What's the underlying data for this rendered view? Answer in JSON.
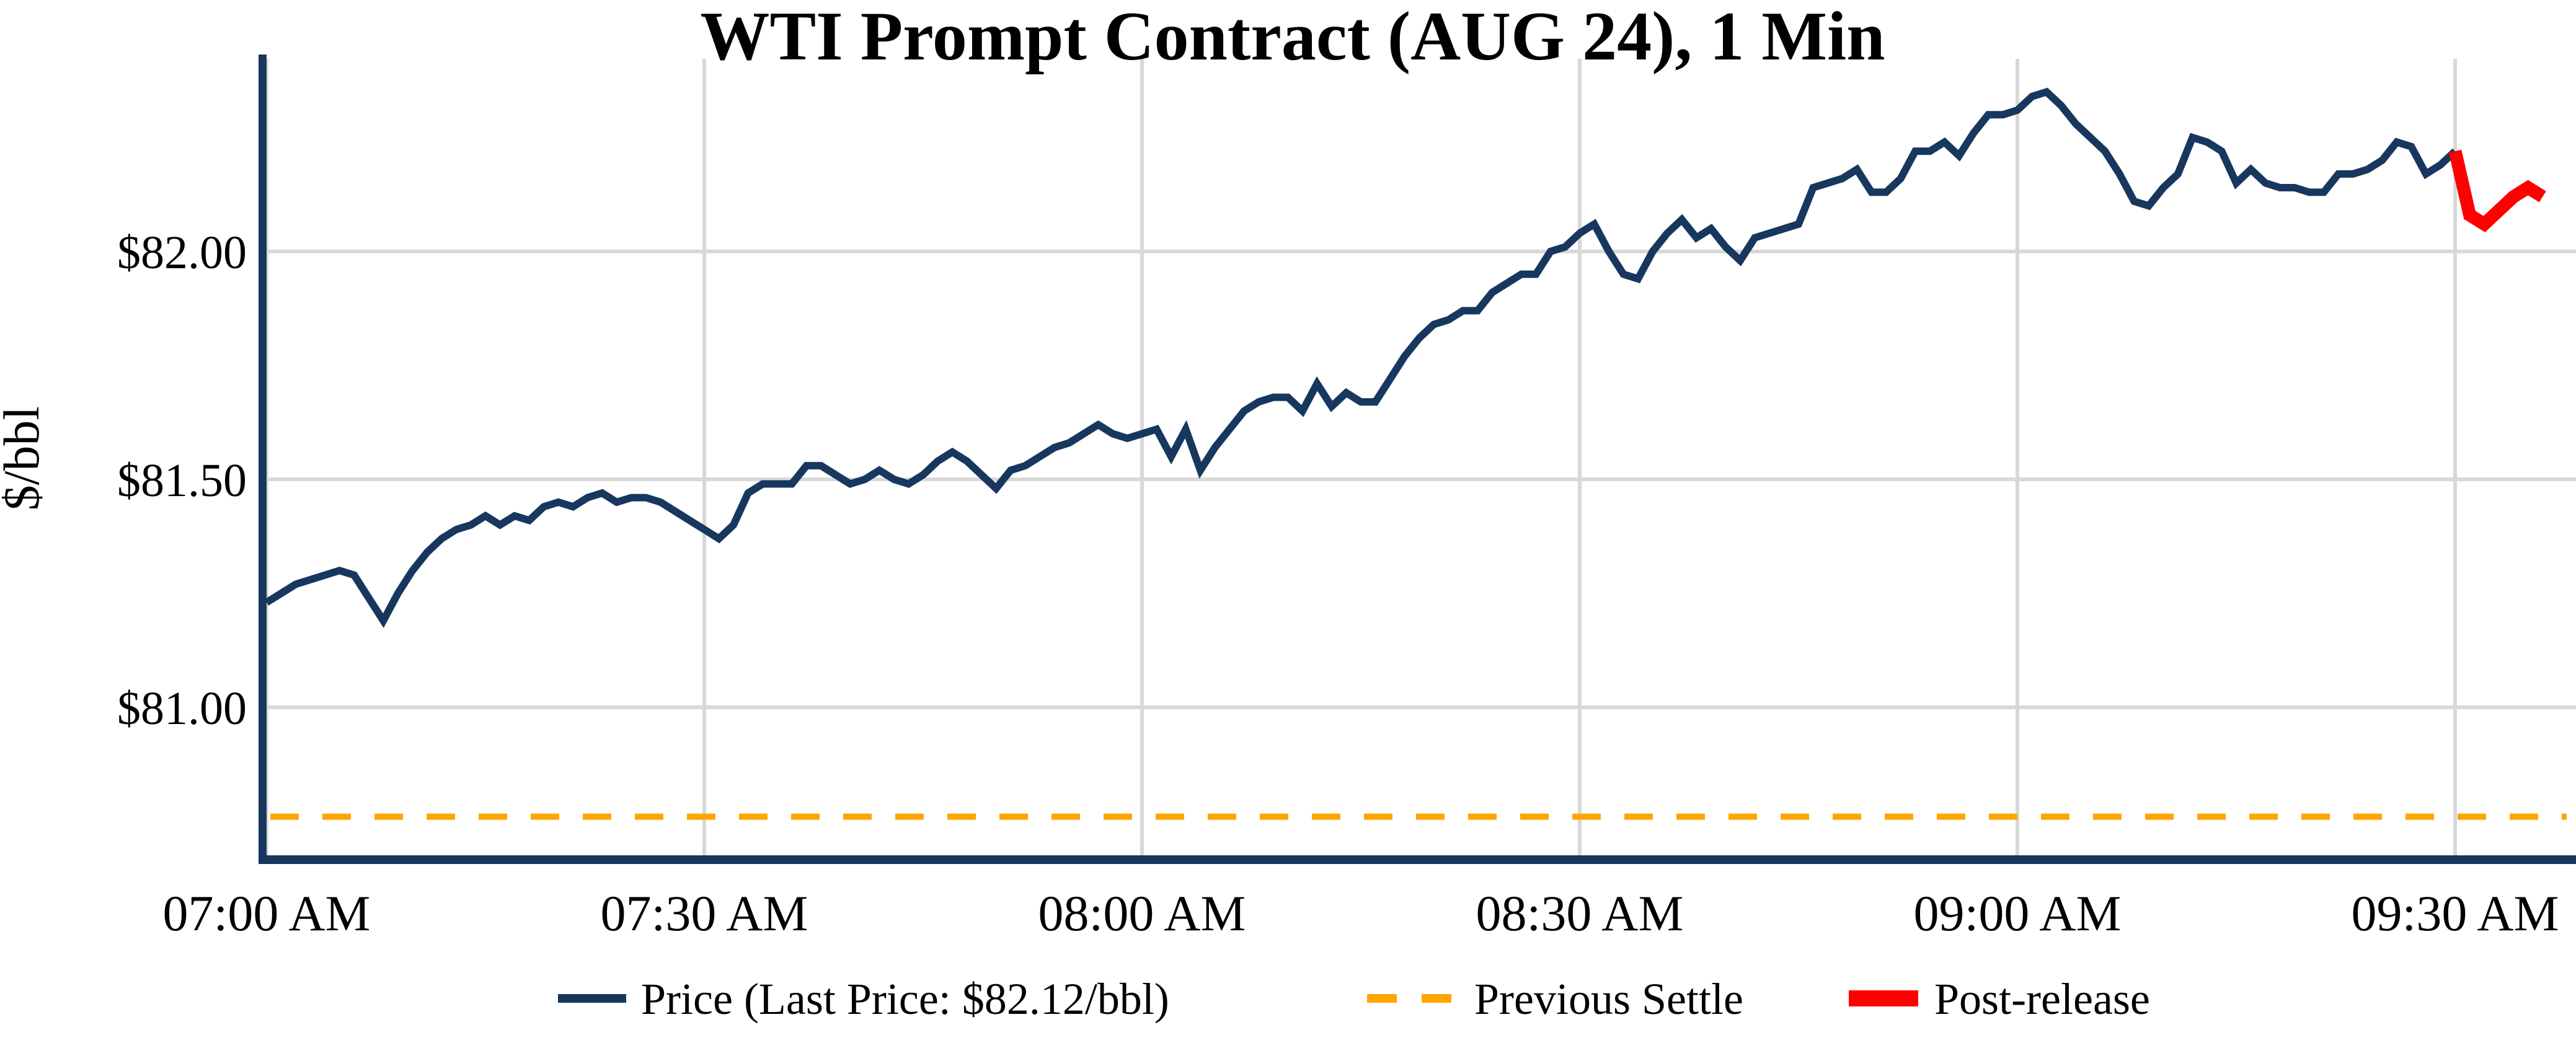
{
  "title": "WTI Prompt Contract (AUG 24), 1 Min",
  "y_axis": {
    "label": "$/bbl",
    "ticks": [
      "$82.00",
      "$81.50",
      "$81.00"
    ],
    "tick_values": [
      82.0,
      81.5,
      81.0
    ]
  },
  "x_axis": {
    "ticks": [
      "07:00 AM",
      "07:30 AM",
      "08:00 AM",
      "08:30 AM",
      "09:00 AM",
      "09:30 AM"
    ]
  },
  "legend": [
    {
      "label": "Price (Last Price: $82.12/bbl)",
      "color": "#17375e",
      "style": "solid"
    },
    {
      "label": "Previous Settle",
      "color": "#ffa500",
      "style": "dashed"
    },
    {
      "label": "Post-release",
      "color": "#fe0000",
      "style": "thick-solid"
    }
  ],
  "colors": {
    "price_line": "#17375e",
    "post_release_line": "#fe0000",
    "previous_settle_line": "#ffa500",
    "gridline": "#d8d8d8",
    "axis_spine": "#17375e",
    "text": "#000000",
    "background": "#ffffff"
  },
  "chart_data": {
    "type": "line",
    "title": "WTI Prompt Contract (AUG 24), 1 Min",
    "xlabel": "",
    "ylabel": "$/bbl",
    "x_start": "07:00 AM",
    "x_end": "09:36 AM",
    "x_step_minutes": 1,
    "x_tick_labels": [
      "07:00 AM",
      "07:30 AM",
      "08:00 AM",
      "08:30 AM",
      "09:00 AM",
      "09:30 AM"
    ],
    "x_tick_minutes": [
      0,
      30,
      60,
      90,
      120,
      150
    ],
    "y_tick_values": [
      82.0,
      81.5,
      81.0
    ],
    "y_tick_labels": [
      "$82.00",
      "$81.50",
      "$81.00"
    ],
    "ylim": [
      80.67,
      82.42
    ],
    "grid": true,
    "legend_position": "bottom-center",
    "last_price": "$82.12/bbl",
    "series": [
      {
        "name": "Price (Last Price: $82.12/bbl)",
        "type": "line",
        "style": "solid",
        "color": "#17375e",
        "start_minute": 0,
        "values": [
          81.23,
          81.25,
          81.27,
          81.28,
          81.29,
          81.3,
          81.29,
          81.24,
          81.19,
          81.25,
          81.3,
          81.34,
          81.37,
          81.39,
          81.4,
          81.42,
          81.4,
          81.42,
          81.41,
          81.44,
          81.45,
          81.44,
          81.46,
          81.47,
          81.45,
          81.46,
          81.46,
          81.45,
          81.43,
          81.41,
          81.39,
          81.37,
          81.4,
          81.47,
          81.49,
          81.49,
          81.49,
          81.53,
          81.53,
          81.51,
          81.49,
          81.5,
          81.52,
          81.5,
          81.49,
          81.51,
          81.54,
          81.56,
          81.54,
          81.51,
          81.48,
          81.52,
          81.53,
          81.55,
          81.57,
          81.58,
          81.6,
          81.62,
          81.6,
          81.59,
          81.6,
          81.61,
          81.55,
          81.61,
          81.52,
          81.57,
          81.61,
          81.65,
          81.67,
          81.68,
          81.68,
          81.65,
          81.71,
          81.66,
          81.69,
          81.67,
          81.67,
          81.72,
          81.77,
          81.81,
          81.84,
          81.85,
          81.87,
          81.87,
          81.91,
          81.93,
          81.95,
          81.95,
          82.0,
          82.01,
          82.04,
          82.06,
          82.0,
          81.95,
          81.94,
          82.0,
          82.04,
          82.07,
          82.03,
          82.05,
          82.01,
          81.98,
          82.03,
          82.04,
          82.05,
          82.06,
          82.14,
          82.15,
          82.16,
          82.18,
          82.13,
          82.13,
          82.16,
          82.22,
          82.22,
          82.24,
          82.21,
          82.26,
          82.3,
          82.3,
          82.31,
          82.34,
          82.35,
          82.32,
          82.28,
          82.25,
          82.22,
          82.17,
          82.11,
          82.1,
          82.14,
          82.17,
          82.25,
          82.24,
          82.22,
          82.15,
          82.18,
          82.15,
          82.14,
          82.14,
          82.13,
          82.13,
          82.17,
          82.17,
          82.18,
          82.2,
          82.24,
          82.23,
          82.17,
          82.19,
          82.22
        ]
      },
      {
        "name": "Post-release",
        "type": "line",
        "style": "solid",
        "color": "#fe0000",
        "start_minute": 150,
        "values": [
          82.22,
          82.08,
          82.06,
          82.09,
          82.12,
          82.14,
          82.12
        ]
      },
      {
        "name": "Previous Settle",
        "type": "hline",
        "style": "dashed",
        "color": "#ffa500",
        "value": 80.76
      }
    ]
  }
}
